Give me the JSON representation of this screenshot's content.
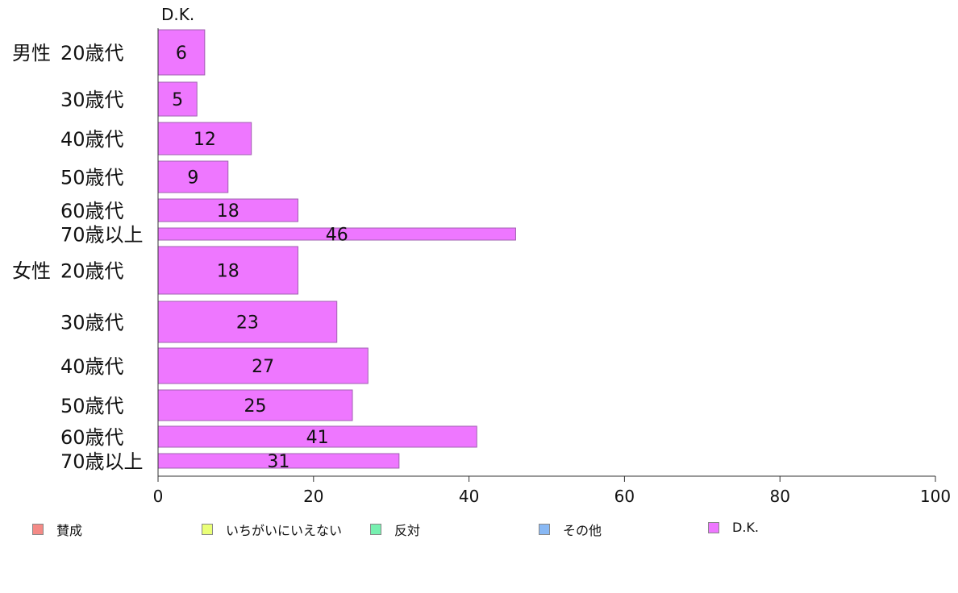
{
  "chart_data": {
    "type": "bar",
    "orientation": "horizontal",
    "title": "D.K.",
    "groups": [
      {
        "label": "男性",
        "rows": [
          {
            "label": "20歳代",
            "value": 6
          },
          {
            "label": "30歳代",
            "value": 5
          },
          {
            "label": "40歳代",
            "value": 12
          },
          {
            "label": "50歳代",
            "value": 9
          },
          {
            "label": "60歳代",
            "value": 18
          },
          {
            "label": "70歳以上",
            "value": 46
          }
        ]
      },
      {
        "label": "女性",
        "rows": [
          {
            "label": "20歳代",
            "value": 18
          },
          {
            "label": "30歳代",
            "value": 23
          },
          {
            "label": "40歳代",
            "value": 27
          },
          {
            "label": "50歳代",
            "value": 25
          },
          {
            "label": "60歳代",
            "value": 41
          },
          {
            "label": "70歳以上",
            "value": 31
          }
        ]
      }
    ],
    "xlim": [
      0,
      100
    ],
    "xticks": [
      0,
      20,
      40,
      60,
      80,
      100
    ],
    "bar_color": "#ee77ff",
    "grid": false,
    "legend_position": "bottom"
  },
  "legend": [
    {
      "label": "賛成",
      "color": "#f48a86"
    },
    {
      "label": "いちがいにいえない",
      "color": "#eaff77"
    },
    {
      "label": "反対",
      "color": "#77f0b0"
    },
    {
      "label": "その他",
      "color": "#88b8f4"
    },
    {
      "label": "D.K.",
      "color": "#ee77ff"
    }
  ]
}
